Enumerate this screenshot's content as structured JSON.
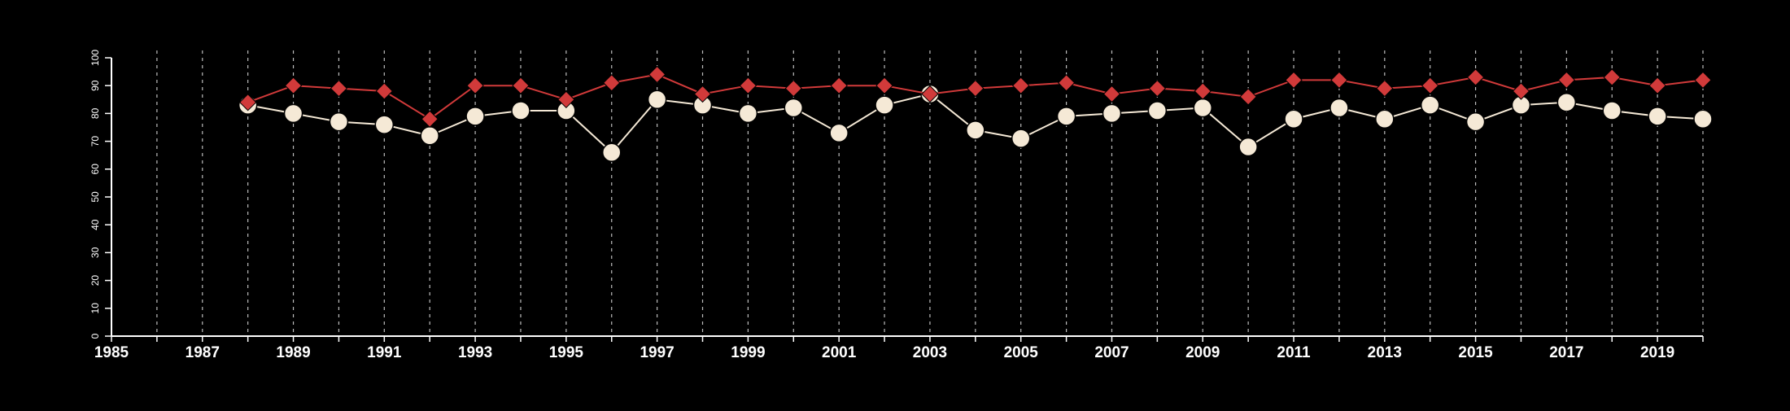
{
  "chart_data": {
    "type": "line",
    "title": "",
    "xlabel": "",
    "ylabel": "",
    "xlim": [
      1985,
      2020
    ],
    "ylim": [
      0,
      100
    ],
    "x_ticks": [
      1985,
      1987,
      1989,
      1991,
      1993,
      1995,
      1997,
      1999,
      2001,
      2003,
      2005,
      2007,
      2009,
      2011,
      2013,
      2015,
      2017,
      2019
    ],
    "y_ticks": [
      0,
      10,
      20,
      30,
      40,
      50,
      60,
      70,
      80,
      90,
      100
    ],
    "grid": "vertical dashed lines at every year",
    "legend": "none",
    "x": [
      1988,
      1989,
      1990,
      1991,
      1992,
      1993,
      1994,
      1995,
      1996,
      1997,
      1998,
      1999,
      2000,
      2001,
      2002,
      2003,
      2004,
      2005,
      2006,
      2007,
      2008,
      2009,
      2010,
      2011,
      2012,
      2013,
      2014,
      2015,
      2016,
      2017,
      2018,
      2019,
      2020
    ],
    "series": [
      {
        "marker": "circle",
        "color": "#f5e9d6",
        "values": [
          83,
          80,
          77,
          76,
          72,
          79,
          81,
          81,
          66,
          85,
          83,
          80,
          82,
          73,
          83,
          87,
          74,
          71,
          79,
          80,
          81,
          82,
          68,
          78,
          82,
          78,
          83,
          77,
          83,
          84,
          81,
          79,
          78
        ]
      },
      {
        "marker": "diamond",
        "color": "#d13a3a",
        "values": [
          84,
          90,
          89,
          88,
          78,
          90,
          90,
          85,
          91,
          94,
          87,
          90,
          89,
          90,
          90,
          87,
          89,
          90,
          91,
          87,
          89,
          88,
          86,
          92,
          92,
          89,
          90,
          93,
          88,
          92,
          93,
          90,
          92
        ]
      }
    ]
  }
}
